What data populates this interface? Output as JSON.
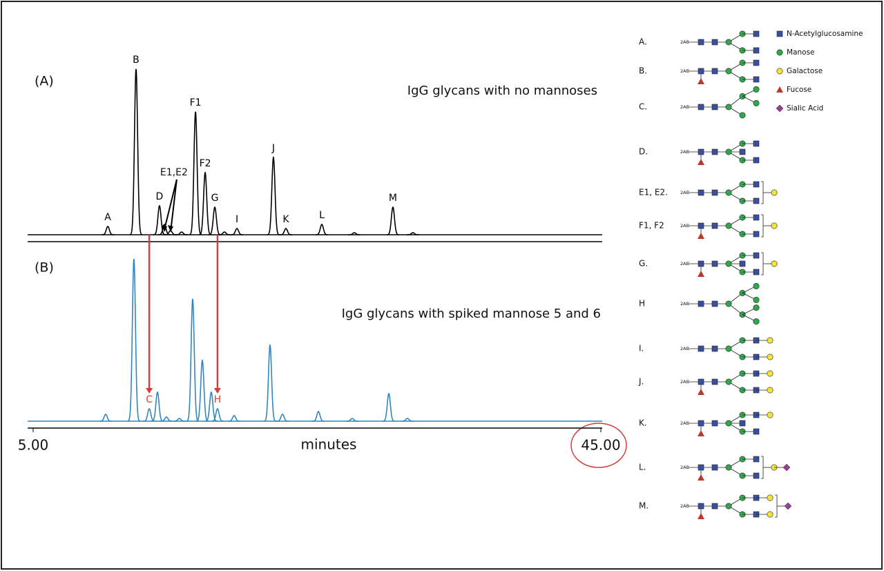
{
  "chart_data": [
    {
      "type": "chromatogram",
      "panel_label": "(A)",
      "title": "IgG glycans with no mannoses",
      "color": "#000000",
      "label_color": "#000000",
      "x": [
        10.26,
        12.25,
        13.9,
        14.25,
        14.68,
        15.46,
        16.44,
        17.12,
        17.8,
        18.48,
        19.36,
        21.93,
        22.81,
        25.34,
        27.63,
        30.35,
        31.76
      ],
      "values": [
        12,
        240,
        42,
        15,
        6,
        4,
        178,
        90,
        40,
        4,
        9,
        112,
        9,
        15,
        3,
        40,
        3
      ],
      "peak_labels": [
        "A",
        "B",
        "D",
        null,
        null,
        null,
        "F1",
        "F2",
        "G",
        null,
        "I",
        "J",
        "K",
        "L",
        null,
        "M",
        null
      ],
      "annotation": "E1,E2",
      "xlim": [
        5,
        45
      ],
      "ylim": [
        0,
        250
      ]
    },
    {
      "type": "chromatogram",
      "panel_label": "(B)",
      "title": "IgG glycans with spiked mannose 5 and 6",
      "color": "#2f86c0",
      "label_color": "#e03c31",
      "x": [
        10.11,
        12.1,
        13.18,
        13.76,
        14.39,
        15.3,
        16.24,
        16.92,
        17.55,
        17.99,
        19.16,
        21.69,
        22.57,
        25.1,
        27.48,
        30.06,
        31.37
      ],
      "values": [
        10,
        235,
        18,
        42,
        6,
        4,
        177,
        88,
        42,
        18,
        8,
        110,
        10,
        14,
        4,
        40,
        4
      ],
      "peak_labels": [
        null,
        null,
        "C",
        null,
        null,
        null,
        null,
        null,
        null,
        "H",
        null,
        null,
        null,
        null,
        null,
        null,
        null
      ],
      "xlim": [
        5,
        45
      ],
      "ylim": [
        0,
        250
      ],
      "xticks": [
        {
          "value": 5,
          "label": "5.00"
        },
        {
          "value": 45,
          "label": "45.00"
        }
      ],
      "x_label": "minutes"
    }
  ],
  "glycan_tag": "2AB",
  "glycans": [
    {
      "label": "A."
    },
    {
      "label": "B."
    },
    {
      "label": "C."
    },
    {
      "label": "D."
    },
    {
      "label": "E1, E2."
    },
    {
      "label": "F1, F2"
    },
    {
      "label": "G."
    },
    {
      "label": "H"
    },
    {
      "label": "I."
    },
    {
      "label": "J."
    },
    {
      "label": "K."
    },
    {
      "label": "L."
    },
    {
      "label": "M."
    }
  ],
  "legend": [
    {
      "name": "N-Acetylglucosamine",
      "color": "#3b4fa0"
    },
    {
      "name": "Manose",
      "color": "#2ea84a"
    },
    {
      "name": "Galactose",
      "color": "#f3e43a"
    },
    {
      "name": "Fucose",
      "color": "#b83a2a"
    },
    {
      "name": "Sialic Acid",
      "color": "#9b3c9a"
    }
  ]
}
